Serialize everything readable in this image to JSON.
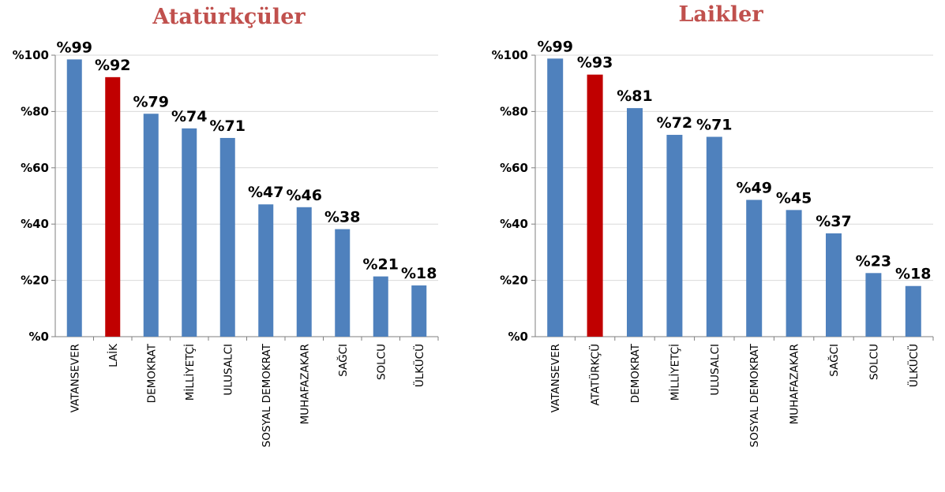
{
  "colors": {
    "bar": "#4f81bd",
    "highlight": "#c00000",
    "title": "#c0504d",
    "grid": "#d9d9d9",
    "axis": "#7f7f7f",
    "text": "#000000"
  },
  "chart_data": [
    {
      "type": "bar",
      "title": "Atatürkçüler",
      "categories": [
        "VATANSEVER",
        "LAİK",
        "DEMOKRAT",
        "MİLLİYETÇİ",
        "ULUSALCI",
        "SOSYAL DEMOKRAT",
        "MUHAFAZAKAR",
        "SAĞCI",
        "SOLCU",
        "ÜLKÜCÜ"
      ],
      "values": [
        98.5,
        92.2,
        79.2,
        74,
        70.6,
        47,
        46,
        38.2,
        21.4,
        18.2
      ],
      "data_labels": [
        "%99",
        "%92",
        "%79",
        "%74",
        "%71",
        "%47",
        "%46",
        "%38",
        "%21",
        "%18"
      ],
      "highlight_index": 1,
      "ylim": [
        0,
        100
      ],
      "yticks": [
        0,
        20,
        40,
        60,
        80,
        100
      ],
      "ytick_labels": [
        "%0",
        "%20",
        "%40",
        "%60",
        "%80",
        "%100"
      ],
      "grid": true,
      "legend": "none"
    },
    {
      "type": "bar",
      "title": "Laikler",
      "categories": [
        "VATANSEVER",
        "ATATÜRKÇÜ",
        "DEMOKRAT",
        "MİLLİYETÇİ",
        "ULUSALCI",
        "SOSYAL DEMOKRAT",
        "MUHAFAZAKAR",
        "SAĞCI",
        "SOLCU",
        "ÜLKÜCÜ"
      ],
      "values": [
        98.8,
        93.1,
        81.2,
        71.7,
        71,
        48.6,
        45,
        36.7,
        22.6,
        18
      ],
      "data_labels": [
        "%99",
        "%93",
        "%81",
        "%72",
        "%71",
        "%49",
        "%45",
        "%37",
        "%23",
        "%18"
      ],
      "highlight_index": 1,
      "ylim": [
        0,
        100
      ],
      "yticks": [
        0,
        20,
        40,
        60,
        80,
        100
      ],
      "ytick_labels": [
        "%0",
        "%20",
        "%40",
        "%60",
        "%80",
        "%100"
      ],
      "grid": true,
      "legend": "none"
    }
  ]
}
